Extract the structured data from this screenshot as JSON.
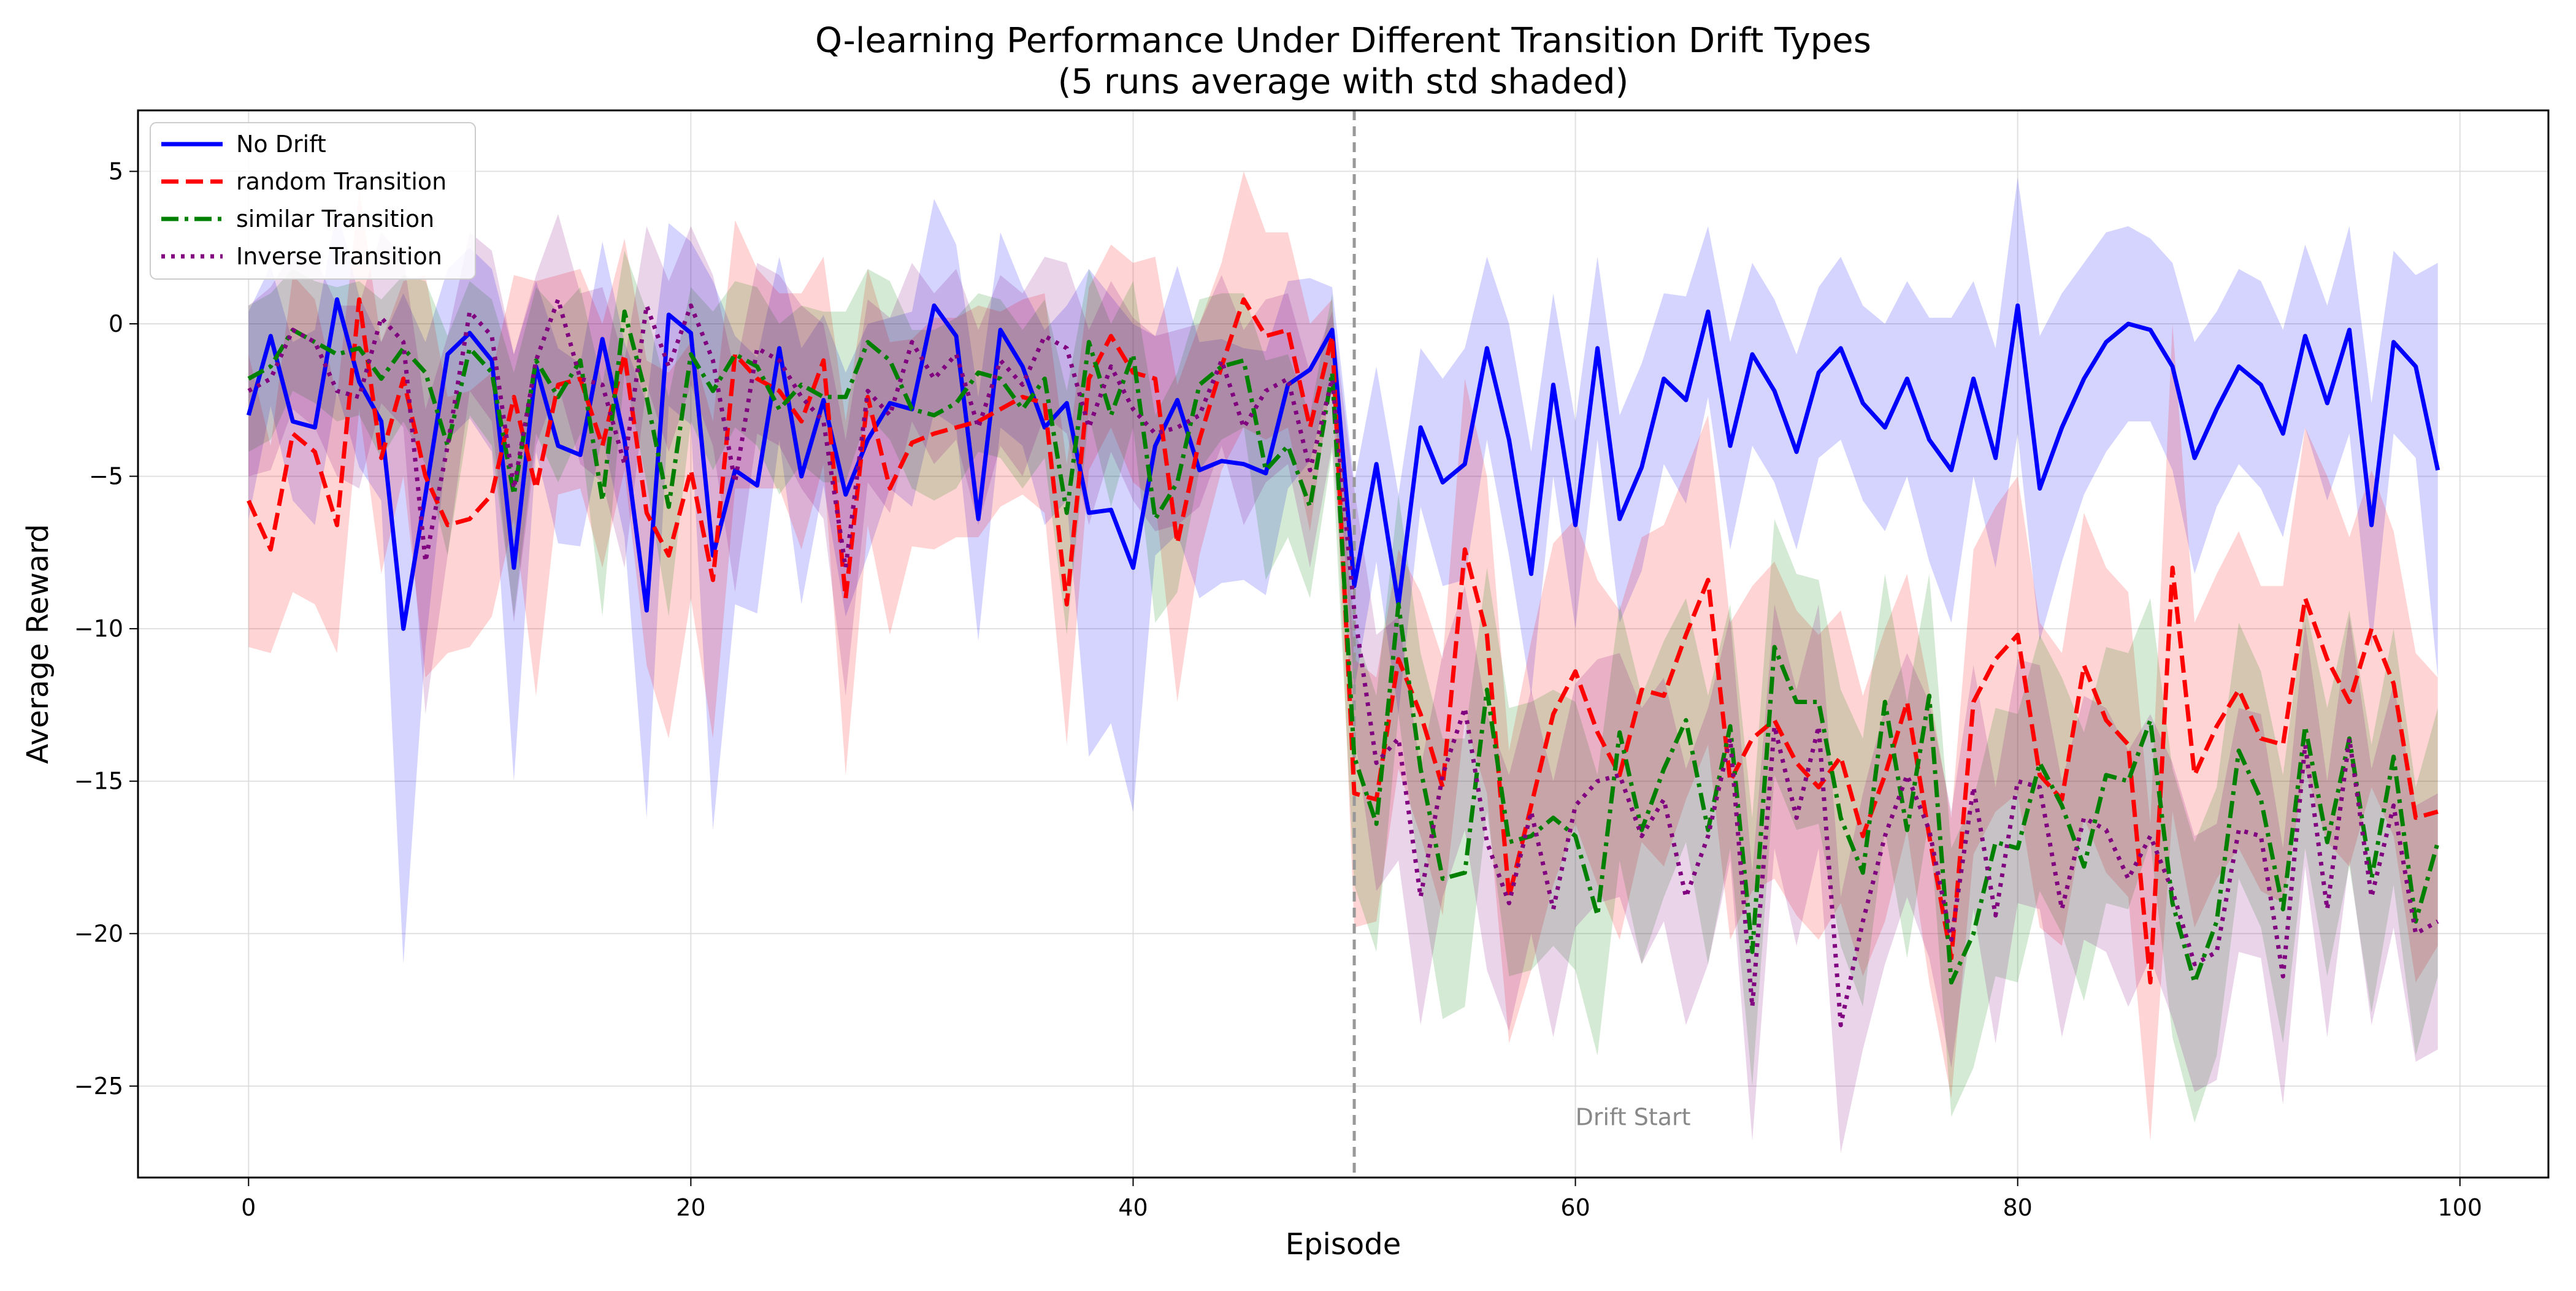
{
  "chart_data": {
    "type": "line",
    "title": "Q-learning Performance Under Different Transition Drift Types",
    "subtitle": "(5 runs average with std shaded)",
    "xlabel": "Episode",
    "ylabel": "Average Reward",
    "xlim": [
      -5,
      104
    ],
    "ylim": [
      -28,
      7
    ],
    "xticks": [
      0,
      20,
      40,
      60,
      80,
      100
    ],
    "yticks": [
      -25,
      -20,
      -15,
      -10,
      -5,
      0,
      5
    ],
    "grid": true,
    "legend_position": "upper-left",
    "annotations": [
      {
        "type": "vline",
        "x": 50,
        "color": "#999999",
        "style": "dashed"
      },
      {
        "type": "text",
        "text": "Drift Start",
        "x": 60,
        "y": -26,
        "color": "#888888"
      }
    ],
    "series": [
      {
        "name": "No Drift",
        "color": "#0000ff",
        "style": "solid",
        "values": [
          -3.0,
          -0.4,
          -3.2,
          -3.4,
          0.8,
          -1.9,
          -3.2,
          -10.0,
          -5.6,
          -1.0,
          -0.3,
          -1.2,
          -8.0,
          -1.4,
          -4.0,
          -4.3,
          -0.5,
          -3.8,
          -9.4,
          0.3,
          -0.3,
          -7.6,
          -4.8,
          -5.3,
          -0.8,
          -5.0,
          -2.5,
          -5.6,
          -3.8,
          -2.6,
          -2.8,
          0.6,
          -0.4,
          -6.4,
          -0.2,
          -1.4,
          -3.4,
          -2.6,
          -6.2,
          -6.1,
          -8.0,
          -4.0,
          -2.5,
          -4.8,
          -4.5,
          -4.6,
          -4.9,
          -2.0,
          -1.5,
          -0.2,
          -8.6,
          -4.6,
          -9.2,
          -3.4,
          -5.2,
          -4.6,
          -0.8,
          -3.8,
          -8.2,
          -2.0,
          -6.6,
          -0.8,
          -6.4,
          -4.7,
          -1.8,
          -2.5,
          0.4,
          -4.0,
          -1.0,
          -2.2,
          -4.2,
          -1.6,
          -0.8,
          -2.6,
          -3.4,
          -1.8,
          -3.8,
          -4.8,
          -1.8,
          -4.4,
          0.6,
          -5.4,
          -3.4,
          -1.8,
          -0.6,
          0.0,
          -0.2,
          -1.4,
          -4.4,
          -2.8,
          -1.4,
          -2.0,
          -3.6,
          -0.4,
          -2.6,
          -0.2,
          -6.6,
          -0.6,
          -1.4,
          -4.8
        ],
        "std": [
          3.4,
          2.3,
          2.6,
          3.2,
          3.0,
          2.8,
          2.6,
          11.0,
          5.0,
          2.8,
          2.8,
          3.0,
          7.0,
          2.8,
          3.2,
          3.0,
          3.2,
          3.2,
          6.8,
          3.0,
          3.0,
          9.0,
          4.4,
          4.2,
          3.0,
          4.2,
          2.8,
          4.0,
          3.8,
          2.8,
          3.2,
          3.5,
          3.0,
          4.0,
          3.2,
          2.6,
          3.2,
          3.2,
          8.0,
          7.0,
          8.0,
          3.6,
          4.4,
          4.2,
          4.0,
          3.8,
          4.0,
          3.4,
          3.0,
          1.4,
          3.4,
          3.2,
          3.6,
          2.6,
          3.4,
          3.8,
          3.0,
          3.8,
          4.0,
          3.0,
          3.4,
          3.0,
          3.4,
          3.4,
          2.8,
          3.4,
          2.8,
          3.4,
          3.0,
          3.0,
          3.2,
          2.8,
          3.0,
          3.2,
          3.4,
          3.2,
          4.0,
          5.0,
          3.2,
          3.6,
          4.2,
          5.0,
          4.4,
          3.8,
          3.6,
          3.2,
          3.0,
          3.4,
          3.8,
          3.2,
          3.2,
          3.4,
          3.4,
          3.0,
          3.2,
          3.4,
          4.0,
          3.0,
          3.0,
          6.8
        ]
      },
      {
        "name": "random Transition",
        "color": "#ff0000",
        "style": "dashed",
        "values": [
          -5.8,
          -7.4,
          -3.6,
          -4.2,
          -6.6,
          0.8,
          -4.4,
          -1.8,
          -5.0,
          -6.6,
          -6.4,
          -5.6,
          -2.4,
          -5.4,
          -2.0,
          -1.8,
          -4.0,
          -1.0,
          -6.2,
          -7.6,
          -4.8,
          -8.4,
          -1.0,
          -1.8,
          -2.2,
          -3.2,
          -1.2,
          -9.0,
          -2.4,
          -5.4,
          -3.9,
          -3.6,
          -3.4,
          -3.2,
          -2.8,
          -2.4,
          -2.6,
          -9.2,
          -1.8,
          -0.4,
          -1.6,
          -1.8,
          -7.2,
          -3.8,
          -1.4,
          0.8,
          -0.4,
          -0.2,
          -3.4,
          -0.4,
          -15.4,
          -15.6,
          -11.0,
          -12.8,
          -15.2,
          -7.4,
          -10.2,
          -18.8,
          -15.8,
          -12.8,
          -11.4,
          -13.4,
          -14.8,
          -12.0,
          -12.2,
          -10.2,
          -8.4,
          -15.0,
          -13.6,
          -13.0,
          -14.4,
          -15.2,
          -14.2,
          -16.8,
          -14.8,
          -12.4,
          -16.8,
          -20.8,
          -12.4,
          -11.0,
          -10.2,
          -14.8,
          -15.6,
          -11.2,
          -13.0,
          -13.8,
          -21.6,
          -8.0,
          -14.8,
          -13.2,
          -12.0,
          -13.6,
          -13.8,
          -9.0,
          -11.0,
          -12.4,
          -10.0,
          -11.8,
          -16.2,
          -16.0
        ],
        "std": [
          4.8,
          3.4,
          5.2,
          5.0,
          4.2,
          3.6,
          3.8,
          3.2,
          6.6,
          4.2,
          4.2,
          4.0,
          4.0,
          6.8,
          3.6,
          3.6,
          4.0,
          3.8,
          5.0,
          6.0,
          4.2,
          5.2,
          4.4,
          3.6,
          3.2,
          4.2,
          3.4,
          5.8,
          4.2,
          4.8,
          3.4,
          3.8,
          3.6,
          3.8,
          3.2,
          3.2,
          3.6,
          4.6,
          3.0,
          3.0,
          3.6,
          4.0,
          5.2,
          3.8,
          3.4,
          4.2,
          3.4,
          3.2,
          3.4,
          1.2,
          4.4,
          4.0,
          3.6,
          4.0,
          4.2,
          5.6,
          5.2,
          4.8,
          5.4,
          5.6,
          5.0,
          5.0,
          5.4,
          5.0,
          5.6,
          5.4,
          5.4,
          5.2,
          5.0,
          5.2,
          5.0,
          5.0,
          4.8,
          4.6,
          4.8,
          4.2,
          4.8,
          4.6,
          5.0,
          5.0,
          5.2,
          5.0,
          4.8,
          5.0,
          5.0,
          5.0,
          5.2,
          8.0,
          5.0,
          5.0,
          5.2,
          5.0,
          5.2,
          5.6,
          6.0,
          5.4,
          5.2,
          5.0,
          5.4,
          4.4
        ]
      },
      {
        "name": " similar Transition",
        "color": "#008000",
        "style": "dashdot",
        "values": [
          -1.8,
          -1.4,
          -0.2,
          -0.6,
          -1.0,
          -0.8,
          -1.8,
          -0.8,
          -1.6,
          -4.0,
          -0.8,
          -1.6,
          -5.6,
          -1.2,
          -2.4,
          -1.2,
          -5.8,
          0.4,
          -2.4,
          -6.0,
          -1.0,
          -2.2,
          -1.0,
          -1.4,
          -2.8,
          -2.0,
          -2.4,
          -2.4,
          -0.6,
          -1.2,
          -2.8,
          -3.0,
          -2.6,
          -1.6,
          -1.8,
          -2.8,
          -1.8,
          -6.2,
          -0.6,
          -3.0,
          -1.0,
          -6.4,
          -5.2,
          -2.0,
          -1.4,
          -1.2,
          -4.8,
          -4.0,
          -6.0,
          -1.6,
          -14.2,
          -16.4,
          -9.2,
          -14.6,
          -18.2,
          -18.0,
          -12.0,
          -17.0,
          -16.8,
          -16.2,
          -16.8,
          -19.4,
          -13.4,
          -16.6,
          -14.6,
          -13.0,
          -16.6,
          -13.2,
          -20.6,
          -10.6,
          -12.4,
          -12.4,
          -16.2,
          -18.0,
          -12.4,
          -16.6,
          -12.2,
          -21.6,
          -20.0,
          -17.0,
          -17.2,
          -14.4,
          -15.8,
          -17.8,
          -14.8,
          -15.0,
          -13.0,
          -19.0,
          -21.6,
          -19.6,
          -14.0,
          -15.6,
          -19.2,
          -13.2,
          -17.0,
          -13.6,
          -18.2,
          -14.2,
          -19.6,
          -17.0
        ],
        "std": [
          2.4,
          2.4,
          2.0,
          2.0,
          2.2,
          2.2,
          2.6,
          2.4,
          3.0,
          3.6,
          2.2,
          2.4,
          4.0,
          2.4,
          2.8,
          2.4,
          3.8,
          2.0,
          2.8,
          3.6,
          2.2,
          2.6,
          2.4,
          2.6,
          2.8,
          2.6,
          2.8,
          2.8,
          2.4,
          2.6,
          2.6,
          2.8,
          2.8,
          2.6,
          2.6,
          2.6,
          2.6,
          4.0,
          2.4,
          3.0,
          2.4,
          3.4,
          3.6,
          2.8,
          2.4,
          2.2,
          3.6,
          3.0,
          3.0,
          2.6,
          4.2,
          4.2,
          3.6,
          3.8,
          4.6,
          4.4,
          4.0,
          4.4,
          4.4,
          4.2,
          4.4,
          4.6,
          4.2,
          4.4,
          4.2,
          4.0,
          4.4,
          4.0,
          4.4,
          4.2,
          4.2,
          4.0,
          4.2,
          4.4,
          4.2,
          4.2,
          4.0,
          4.4,
          4.4,
          4.4,
          4.4,
          4.2,
          4.2,
          4.4,
          4.2,
          4.2,
          4.0,
          4.4,
          4.6,
          4.4,
          4.2,
          4.2,
          4.4,
          4.0,
          4.4,
          4.2,
          4.4,
          4.2,
          4.4,
          4.4
        ]
      },
      {
        "name": "Inverse Transition",
        "color": "#800080",
        "style": "dotted",
        "values": [
          -2.2,
          -1.8,
          -0.2,
          -0.6,
          -2.2,
          -2.4,
          0.2,
          -0.6,
          -7.8,
          -4.0,
          0.4,
          -0.4,
          -5.4,
          -1.2,
          0.8,
          -1.8,
          -2.0,
          -4.6,
          0.6,
          -1.4,
          0.6,
          -1.2,
          -5.2,
          -0.8,
          -1.2,
          -2.4,
          -3.2,
          -8.0,
          -2.2,
          -3.0,
          -0.6,
          -1.8,
          -1.0,
          -3.4,
          -1.2,
          -2.0,
          -0.4,
          -0.8,
          -3.4,
          -1.4,
          -2.8,
          -3.6,
          -3.4,
          -3.0,
          -1.2,
          -3.4,
          -2.2,
          -1.8,
          -4.8,
          -1.8,
          -9.4,
          -14.4,
          -13.6,
          -18.8,
          -14.8,
          -12.6,
          -17.0,
          -19.0,
          -16.0,
          -19.2,
          -15.8,
          -15.0,
          -14.8,
          -16.8,
          -15.6,
          -18.8,
          -16.8,
          -13.6,
          -22.4,
          -13.2,
          -16.2,
          -13.2,
          -23.0,
          -19.6,
          -16.8,
          -14.8,
          -16.6,
          -20.2,
          -15.2,
          -19.4,
          -15.0,
          -15.2,
          -19.2,
          -16.2,
          -16.6,
          -18.2,
          -16.8,
          -18.6,
          -21.0,
          -20.6,
          -16.6,
          -16.8,
          -21.4,
          -13.8,
          -19.2,
          -13.6,
          -18.8,
          -15.8,
          -20.0,
          -19.6
        ],
        "std": [
          2.8,
          3.0,
          2.6,
          2.8,
          2.8,
          3.0,
          2.8,
          2.8,
          5.0,
          3.6,
          2.6,
          2.8,
          4.4,
          2.8,
          2.8,
          2.8,
          3.2,
          3.4,
          2.6,
          2.8,
          2.6,
          2.8,
          3.6,
          2.8,
          2.8,
          3.0,
          3.2,
          4.2,
          3.0,
          3.2,
          2.6,
          2.8,
          2.8,
          3.2,
          2.8,
          3.0,
          2.6,
          2.8,
          3.2,
          2.8,
          3.0,
          3.2,
          3.2,
          3.0,
          2.8,
          3.2,
          3.0,
          2.8,
          3.2,
          2.2,
          4.0,
          4.2,
          4.0,
          4.2,
          4.0,
          4.0,
          4.2,
          4.2,
          4.0,
          4.2,
          4.0,
          4.0,
          4.0,
          4.2,
          4.0,
          4.2,
          4.2,
          4.0,
          4.4,
          4.0,
          4.2,
          4.0,
          4.2,
          4.2,
          4.2,
          4.0,
          4.2,
          4.2,
          4.0,
          4.2,
          4.0,
          4.0,
          4.2,
          4.0,
          4.0,
          4.2,
          4.0,
          4.2,
          4.2,
          4.2,
          4.0,
          4.0,
          4.2,
          4.0,
          4.2,
          4.0,
          4.2,
          4.0,
          4.2,
          4.2
        ]
      }
    ]
  }
}
